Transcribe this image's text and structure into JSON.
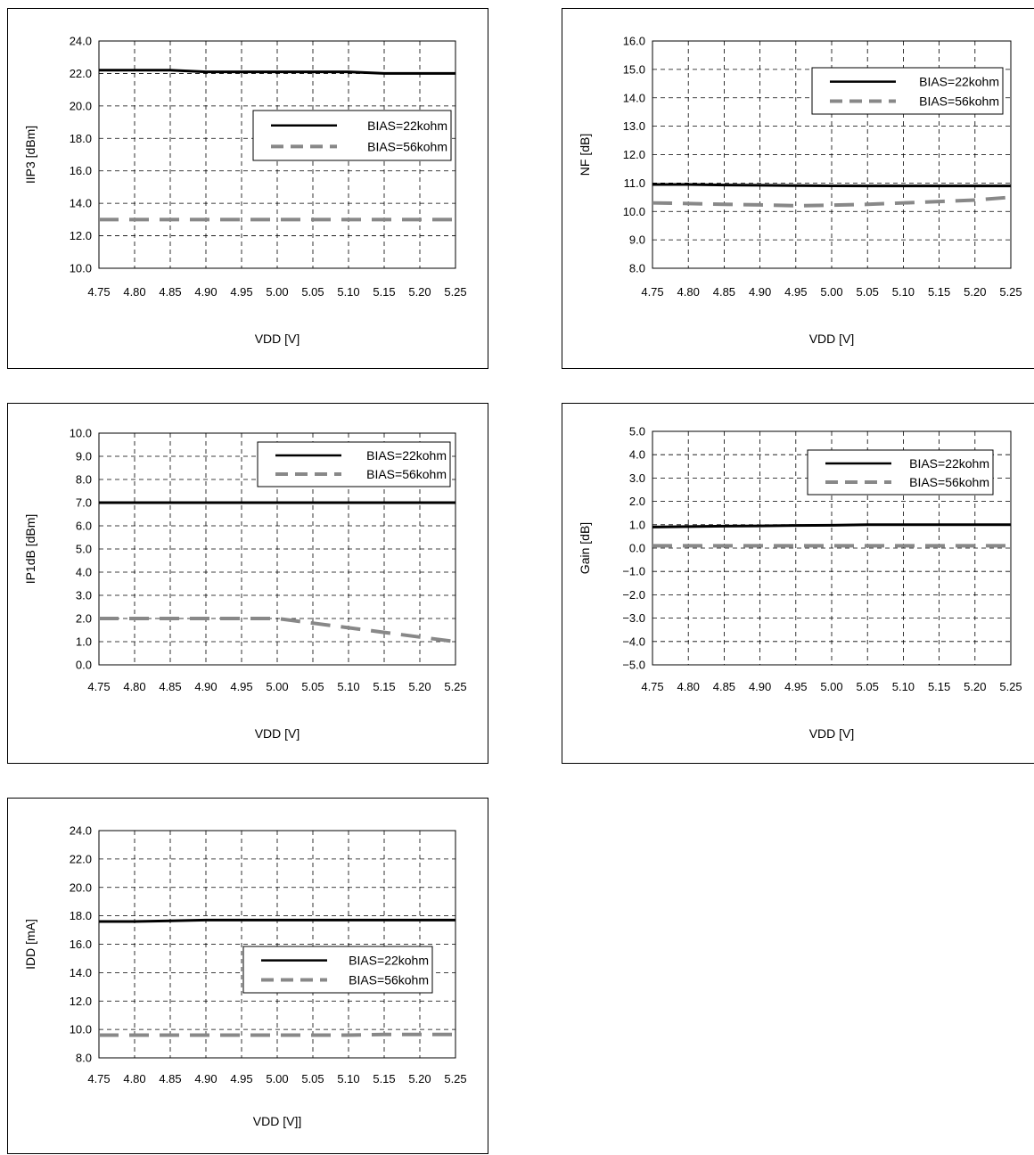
{
  "series_colors": {
    "bias22": "#000000",
    "bias56": "#888888"
  },
  "chart_data": [
    {
      "type": "line",
      "x": [
        4.75,
        4.8,
        4.85,
        4.9,
        4.95,
        5.0,
        5.05,
        5.1,
        5.15,
        5.2,
        5.25
      ],
      "xticks": [
        "4.75",
        "4.80",
        "4.85",
        "4.90",
        "4.95",
        "5.00",
        "5.05",
        "5.10",
        "5.15",
        "5.20",
        "5.25"
      ],
      "xlim": [
        4.75,
        5.25
      ],
      "ylim": [
        10.0,
        24.0
      ],
      "yticks": [
        "10.0",
        "12.0",
        "14.0",
        "16.0",
        "18.0",
        "20.0",
        "22.0",
        "24.0"
      ],
      "xlabel": "VDD [V]",
      "ylabel": "IIP3 [dBm]",
      "grid": true,
      "legend": "middle-right",
      "series": [
        {
          "name": "BIAS=22kohm",
          "style": "solid",
          "values": [
            22.2,
            22.2,
            22.2,
            22.1,
            22.1,
            22.1,
            22.1,
            22.1,
            22.0,
            22.0,
            22.0
          ]
        },
        {
          "name": "BIAS=56kohm",
          "style": "dashed",
          "values": [
            13.0,
            13.0,
            13.0,
            13.0,
            13.0,
            13.0,
            13.0,
            13.0,
            13.0,
            13.0,
            13.0
          ]
        }
      ]
    },
    {
      "type": "line",
      "x": [
        4.75,
        4.8,
        4.85,
        4.9,
        4.95,
        5.0,
        5.05,
        5.1,
        5.15,
        5.2,
        5.25
      ],
      "xticks": [
        "4.75",
        "4.80",
        "4.85",
        "4.90",
        "4.95",
        "5.00",
        "5.05",
        "5.10",
        "5.15",
        "5.20",
        "5.25"
      ],
      "xlim": [
        4.75,
        5.25
      ],
      "ylim": [
        8.0,
        16.0
      ],
      "yticks": [
        "8.0",
        "9.0",
        "10.0",
        "11.0",
        "12.0",
        "13.0",
        "14.0",
        "15.0",
        "16.0"
      ],
      "xlabel": "VDD [V]",
      "ylabel": "NF [dB]",
      "grid": true,
      "legend": "top-right",
      "series": [
        {
          "name": "BIAS=22kohm",
          "style": "solid",
          "values": [
            10.95,
            10.95,
            10.93,
            10.92,
            10.91,
            10.9,
            10.9,
            10.9,
            10.9,
            10.9,
            10.9
          ]
        },
        {
          "name": "BIAS=56kohm",
          "style": "dashed",
          "values": [
            10.3,
            10.28,
            10.25,
            10.23,
            10.2,
            10.22,
            10.25,
            10.3,
            10.35,
            10.4,
            10.5
          ]
        }
      ]
    },
    {
      "type": "line",
      "x": [
        4.75,
        4.8,
        4.85,
        4.9,
        4.95,
        5.0,
        5.05,
        5.1,
        5.15,
        5.2,
        5.25
      ],
      "xticks": [
        "4.75",
        "4.80",
        "4.85",
        "4.90",
        "4.95",
        "5.00",
        "5.05",
        "5.10",
        "5.15",
        "5.20",
        "5.25"
      ],
      "xlim": [
        4.75,
        5.25
      ],
      "ylim": [
        0.0,
        10.0
      ],
      "yticks": [
        "0.0",
        "1.0",
        "2.0",
        "3.0",
        "4.0",
        "5.0",
        "6.0",
        "7.0",
        "8.0",
        "9.0",
        "10.0"
      ],
      "xlabel": "VDD [V]",
      "ylabel": "IP1dB [dBm]",
      "grid": true,
      "legend": "top-right",
      "series": [
        {
          "name": "BIAS=22kohm",
          "style": "solid",
          "values": [
            7.0,
            7.0,
            7.0,
            7.0,
            7.0,
            7.0,
            7.0,
            7.0,
            7.0,
            7.0,
            7.0
          ]
        },
        {
          "name": "BIAS=56kohm",
          "style": "dashed",
          "values": [
            2.0,
            2.0,
            2.0,
            2.0,
            2.0,
            2.0,
            1.8,
            1.6,
            1.4,
            1.2,
            1.0
          ]
        }
      ]
    },
    {
      "type": "line",
      "x": [
        4.75,
        4.8,
        4.85,
        4.9,
        4.95,
        5.0,
        5.05,
        5.1,
        5.15,
        5.2,
        5.25
      ],
      "xticks": [
        "4.75",
        "4.80",
        "4.85",
        "4.90",
        "4.95",
        "5.00",
        "5.05",
        "5.10",
        "5.15",
        "5.20",
        "5.25"
      ],
      "xlim": [
        4.75,
        5.25
      ],
      "ylim": [
        -5.0,
        5.0
      ],
      "yticks": [
        "−5.0",
        "−4.0",
        "−3.0",
        "−2.0",
        "−1.0",
        "0.0",
        "1.0",
        "2.0",
        "3.0",
        "4.0",
        "5.0"
      ],
      "xlabel": "VDD [V]",
      "ylabel": "Gain [dB]",
      "grid": true,
      "legend": "top-right",
      "series": [
        {
          "name": "BIAS=22kohm",
          "style": "solid",
          "values": [
            0.9,
            0.92,
            0.94,
            0.95,
            0.97,
            0.98,
            1.0,
            1.0,
            1.0,
            1.0,
            1.0
          ]
        },
        {
          "name": "BIAS=56kohm",
          "style": "dashed",
          "values": [
            0.1,
            0.1,
            0.1,
            0.1,
            0.1,
            0.1,
            0.1,
            0.1,
            0.1,
            0.1,
            0.1
          ]
        }
      ]
    },
    {
      "type": "line",
      "x": [
        4.75,
        4.8,
        4.85,
        4.9,
        4.95,
        5.0,
        5.05,
        5.1,
        5.15,
        5.2,
        5.25
      ],
      "xticks": [
        "4.75",
        "4.80",
        "4.85",
        "4.90",
        "4.95",
        "5.00",
        "5.05",
        "5.10",
        "5.15",
        "5.20",
        "5.25"
      ],
      "xlim": [
        4.75,
        5.25
      ],
      "ylim": [
        8.0,
        24.0
      ],
      "yticks": [
        "8.0",
        "10.0",
        "12.0",
        "14.0",
        "16.0",
        "18.0",
        "20.0",
        "22.0",
        "24.0"
      ],
      "xlabel": "VDD [V]]",
      "ylabel": "IDD [mA]",
      "grid": true,
      "legend": "middle-right",
      "series": [
        {
          "name": "BIAS=22kohm",
          "style": "solid",
          "values": [
            17.6,
            17.6,
            17.65,
            17.7,
            17.7,
            17.7,
            17.7,
            17.7,
            17.7,
            17.7,
            17.7
          ]
        },
        {
          "name": "BIAS=56kohm",
          "style": "dashed",
          "values": [
            9.6,
            9.6,
            9.6,
            9.6,
            9.6,
            9.6,
            9.6,
            9.6,
            9.65,
            9.65,
            9.65
          ]
        }
      ]
    }
  ]
}
